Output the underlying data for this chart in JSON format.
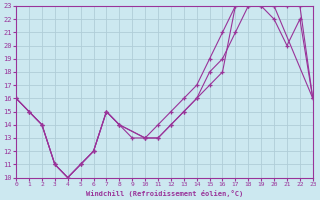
{
  "xlabel": "Windchill (Refroidissement éolien,°C)",
  "xlim": [
    0,
    23
  ],
  "ylim": [
    10,
    23
  ],
  "xticks": [
    0,
    1,
    2,
    3,
    4,
    5,
    6,
    7,
    8,
    9,
    10,
    11,
    12,
    13,
    14,
    15,
    16,
    17,
    18,
    19,
    20,
    21,
    22,
    23
  ],
  "yticks": [
    10,
    11,
    12,
    13,
    14,
    15,
    16,
    17,
    18,
    19,
    20,
    21,
    22,
    23
  ],
  "bg_color": "#cce8f0",
  "grid_color": "#b0cdd8",
  "line_color": "#993399",
  "line1_x": [
    0,
    1,
    2,
    3,
    4,
    5,
    6,
    7,
    8,
    9,
    10,
    11,
    12,
    13,
    14,
    15,
    16,
    17,
    18,
    19,
    20,
    21,
    22,
    23
  ],
  "line1_y": [
    16,
    15,
    14,
    11,
    10,
    11,
    12,
    15,
    14,
    13,
    13,
    13,
    14,
    15,
    16,
    17,
    18,
    23,
    23,
    23,
    22,
    20,
    22,
    16
  ],
  "line2_x": [
    0,
    1,
    2,
    3,
    4,
    5,
    6,
    7,
    8,
    10,
    11,
    12,
    13,
    14,
    15,
    16,
    17,
    18,
    19,
    20,
    21,
    22,
    23
  ],
  "line2_y": [
    16,
    15,
    14,
    11,
    10,
    11,
    12,
    15,
    14,
    13,
    13,
    14,
    15,
    16,
    18,
    19,
    21,
    23,
    23,
    23,
    23,
    23,
    16
  ],
  "line3_x": [
    0,
    1,
    2,
    3,
    4,
    5,
    6,
    7,
    8,
    10,
    11,
    12,
    13,
    14,
    15,
    16,
    17,
    18,
    19,
    20,
    23
  ],
  "line3_y": [
    16,
    15,
    14,
    11,
    10,
    11,
    12,
    15,
    14,
    13,
    14,
    15,
    16,
    17,
    19,
    21,
    23,
    23,
    23,
    23,
    16
  ]
}
